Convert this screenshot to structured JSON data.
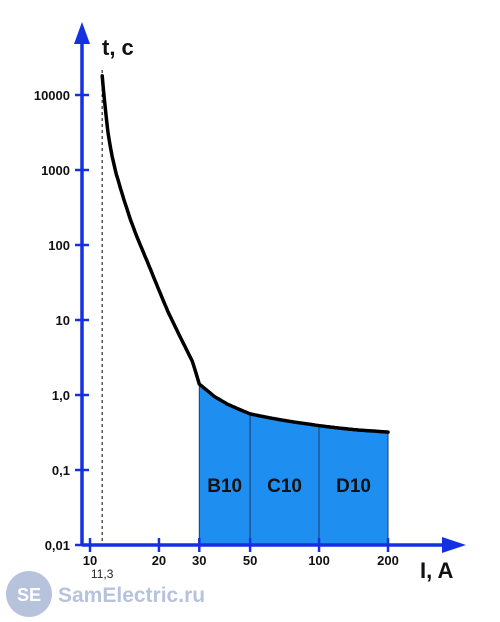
{
  "chart_data": {
    "type": "line",
    "xlabel": "I, A",
    "ylabel": "t, c",
    "x_scale": "log",
    "y_scale": "log",
    "xlim": [
      10,
      210
    ],
    "ylim": [
      0.01,
      20000
    ],
    "x_ticks": [
      {
        "value": 10,
        "label": "10"
      },
      {
        "value": 20,
        "label": "20"
      },
      {
        "value": 30,
        "label": "30"
      },
      {
        "value": 50,
        "label": "50"
      },
      {
        "value": 100,
        "label": "100"
      },
      {
        "value": 200,
        "label": "200"
      }
    ],
    "y_ticks": [
      {
        "value": 0.01,
        "label": "0,01"
      },
      {
        "value": 0.1,
        "label": "0,1"
      },
      {
        "value": 1,
        "label": "1,0"
      },
      {
        "value": 10,
        "label": "10"
      },
      {
        "value": 100,
        "label": "100"
      },
      {
        "value": 1000,
        "label": "1000"
      },
      {
        "value": 10000,
        "label": "10000"
      }
    ],
    "series": [
      {
        "x": [
          11.3,
          11.5,
          12,
          12.5,
          13,
          14,
          15,
          16,
          18,
          20,
          22,
          25,
          28,
          30,
          35,
          40,
          45,
          50,
          60,
          70,
          80,
          90,
          100,
          125,
          150,
          175,
          200
        ],
        "y": [
          18000,
          10000,
          3000,
          1500,
          900,
          420,
          220,
          130,
          55,
          25,
          12.5,
          5.6,
          2.8,
          1.4,
          0.95,
          0.75,
          0.64,
          0.56,
          0.5,
          0.46,
          0.43,
          0.41,
          0.39,
          0.36,
          0.34,
          0.33,
          0.32
        ]
      }
    ],
    "zones": [
      {
        "label": "B10",
        "x_start": 30,
        "x_end": 50
      },
      {
        "label": "C10",
        "x_start": 50,
        "x_end": 100
      },
      {
        "label": "D10",
        "x_start": 100,
        "x_end": 200
      }
    ],
    "marker": {
      "x": 11.3,
      "label": "11,3"
    },
    "colors": {
      "axis": "#1530e0",
      "curve": "#000000",
      "zone_fill": "#1e8ef0",
      "zone_border": "#1a3f70"
    }
  },
  "watermark": {
    "badge": "SE",
    "text": "SamElectric.ru"
  }
}
